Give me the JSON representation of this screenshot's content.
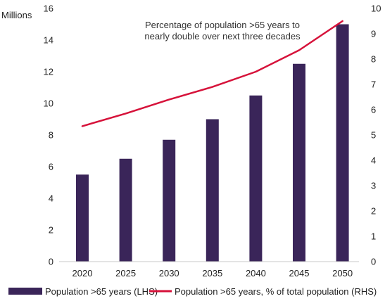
{
  "chart_data": {
    "type": "bar",
    "categories": [
      "2020",
      "2025",
      "2030",
      "2035",
      "2040",
      "2045",
      "2050"
    ],
    "series": [
      {
        "name": "Population >65 years (LHS)",
        "type": "bar",
        "axis": "left",
        "color": "#3a2559",
        "values": [
          5.5,
          6.5,
          7.7,
          9.0,
          10.5,
          12.5,
          15.0
        ]
      },
      {
        "name": "Population >65 years, % of total population (RHS)",
        "type": "line",
        "axis": "right",
        "color": "#d6123a",
        "values": [
          5.35,
          5.85,
          6.4,
          6.9,
          7.5,
          8.35,
          9.5
        ]
      }
    ],
    "left_axis": {
      "title": "Millions",
      "min": 0,
      "max": 16,
      "ticks": [
        "0",
        "2",
        "4",
        "6",
        "8",
        "10",
        "12",
        "14",
        "16"
      ]
    },
    "right_axis": {
      "min": 0,
      "max": 10,
      "ticks": [
        "0",
        "1",
        "2",
        "3",
        "4",
        "5",
        "6",
        "7",
        "8",
        "9",
        "10"
      ]
    },
    "annotation": {
      "line1": "Percentage of population >65 years to",
      "line2": "nearly double over next three decades"
    },
    "grid": false,
    "legend_position": "bottom"
  }
}
